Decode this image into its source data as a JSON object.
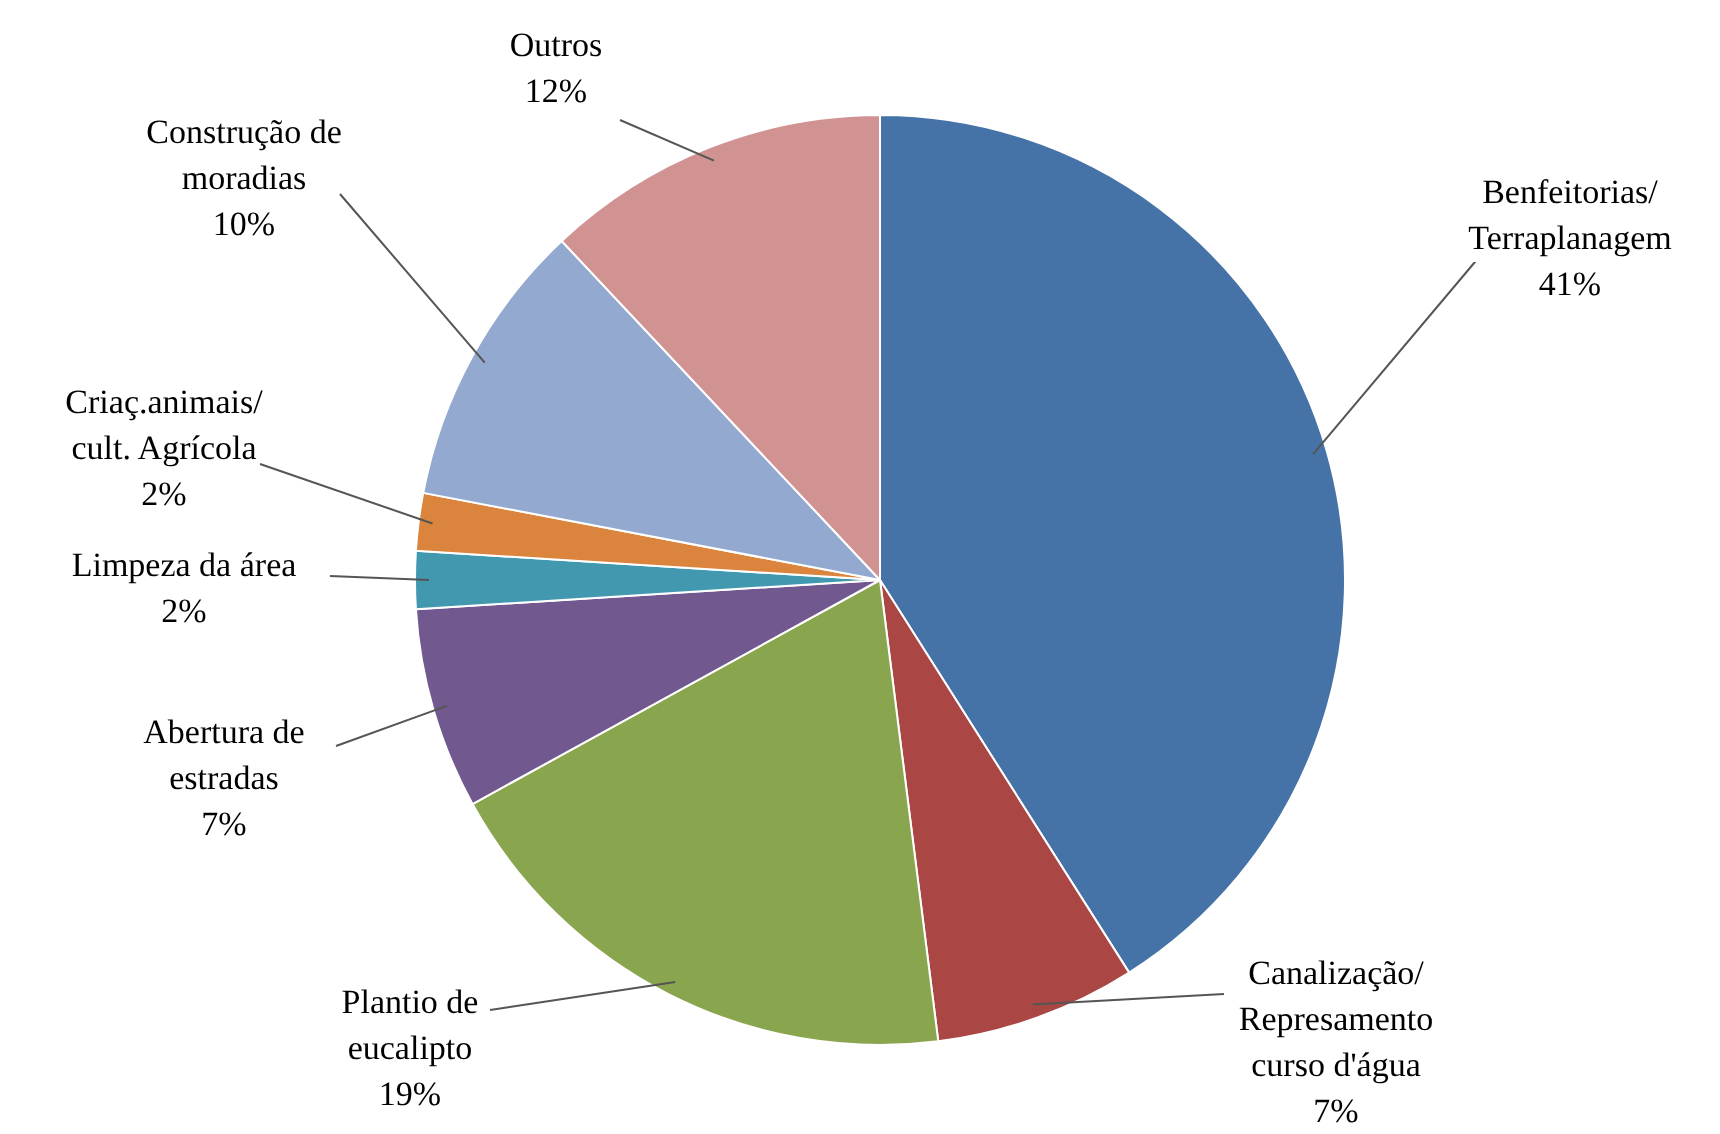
{
  "chart_data": {
    "type": "pie",
    "categories": [
      "Benfeitorias/\nTerraplanagem",
      "Canalização/\nRepresamento\ncurso d'água",
      "Plantio de\neucalipto",
      "Abertura de\nestradas",
      "Limpeza da área",
      "Criaç.animais/\ncult. Agrícola",
      "Construção de\nmoradias",
      "Outros"
    ],
    "values": [
      41,
      7,
      19,
      7,
      2,
      2,
      10,
      12
    ],
    "value_labels": [
      "41%",
      "7%",
      "19%",
      "7%",
      "2%",
      "2%",
      "10%",
      "12%"
    ],
    "colors": [
      "#4572a7",
      "#aa4643",
      "#89a54e",
      "#71588f",
      "#4198af",
      "#db843d",
      "#93a9cf",
      "#d19392"
    ],
    "legend": false
  }
}
